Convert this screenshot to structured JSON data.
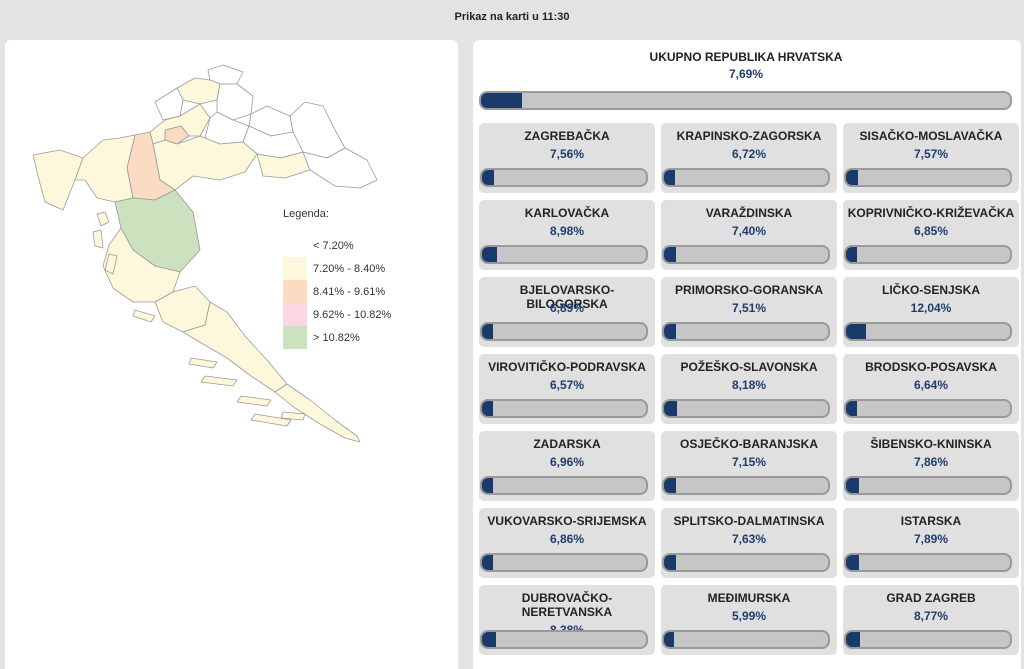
{
  "header": {
    "title": "Prikaz na karti u 11:30"
  },
  "legend": {
    "title": "Legenda:",
    "items": [
      {
        "label": "< 7.20%",
        "color": "#ffffff"
      },
      {
        "label": "7.20% - 8.40%",
        "color": "#fdf8dc"
      },
      {
        "label": "8.41% - 9.61%",
        "color": "#fbdcc2"
      },
      {
        "label": "9.62% - 10.82%",
        "color": "#fbd7e3"
      },
      {
        "label": "> 10.82%",
        "color": "#cce2bf"
      }
    ]
  },
  "total": {
    "name": "UKUPNO REPUBLIKA HRVATSKA",
    "value": "7,69%",
    "fill_fraction": 0.077
  },
  "counties": [
    {
      "name": "ZAGREBAČKA",
      "value": "7,56%",
      "fill": 0.076
    },
    {
      "name": "KRAPINSKO-ZAGORSKA",
      "value": "6,72%",
      "fill": 0.067
    },
    {
      "name": "SISAČKO-MOSLAVAČKA",
      "value": "7,57%",
      "fill": 0.076
    },
    {
      "name": "KARLOVAČKA",
      "value": "8,98%",
      "fill": 0.09
    },
    {
      "name": "VARAŽDINSKA",
      "value": "7,40%",
      "fill": 0.074
    },
    {
      "name": "KOPRIVNIČKO-KRIŽEVAČKA",
      "value": "6,85%",
      "fill": 0.069
    },
    {
      "name": "BJELOVARSKO-BILOGORSKA",
      "value": "6,89%",
      "fill": 0.069
    },
    {
      "name": "PRIMORSKO-GORANSKA",
      "value": "7,51%",
      "fill": 0.075
    },
    {
      "name": "LIČKO-SENJSKA",
      "value": "12,04%",
      "fill": 0.12
    },
    {
      "name": "VIROVITIČKO-PODRAVSKA",
      "value": "6,57%",
      "fill": 0.066
    },
    {
      "name": "POŽEŠKO-SLAVONSKA",
      "value": "8,18%",
      "fill": 0.082
    },
    {
      "name": "BRODSKO-POSAVSKA",
      "value": "6,64%",
      "fill": 0.066
    },
    {
      "name": "ZADARSKA",
      "value": "6,96%",
      "fill": 0.07
    },
    {
      "name": "OSJEČKO-BARANJSKA",
      "value": "7,15%",
      "fill": 0.072
    },
    {
      "name": "ŠIBENSKO-KNINSKA",
      "value": "7,86%",
      "fill": 0.079
    },
    {
      "name": "VUKOVARSKO-SRIJEMSKA",
      "value": "6,86%",
      "fill": 0.069
    },
    {
      "name": "SPLITSKO-DALMATINSKA",
      "value": "7,63%",
      "fill": 0.076
    },
    {
      "name": "ISTARSKA",
      "value": "7,89%",
      "fill": 0.079
    },
    {
      "name": "DUBROVAČKO-NERETVANSKA",
      "value": "8,38%",
      "fill": 0.084,
      "tall": true
    },
    {
      "name": "MEĐIMURSKA",
      "value": "5,99%",
      "fill": 0.06
    },
    {
      "name": "GRAD ZAGREB",
      "value": "8,77%",
      "fill": 0.088
    }
  ],
  "colors": {
    "bar_fill": "#1a3a6c",
    "bar_track": "#c6c6c6",
    "value_text": "#1f3c6e"
  }
}
